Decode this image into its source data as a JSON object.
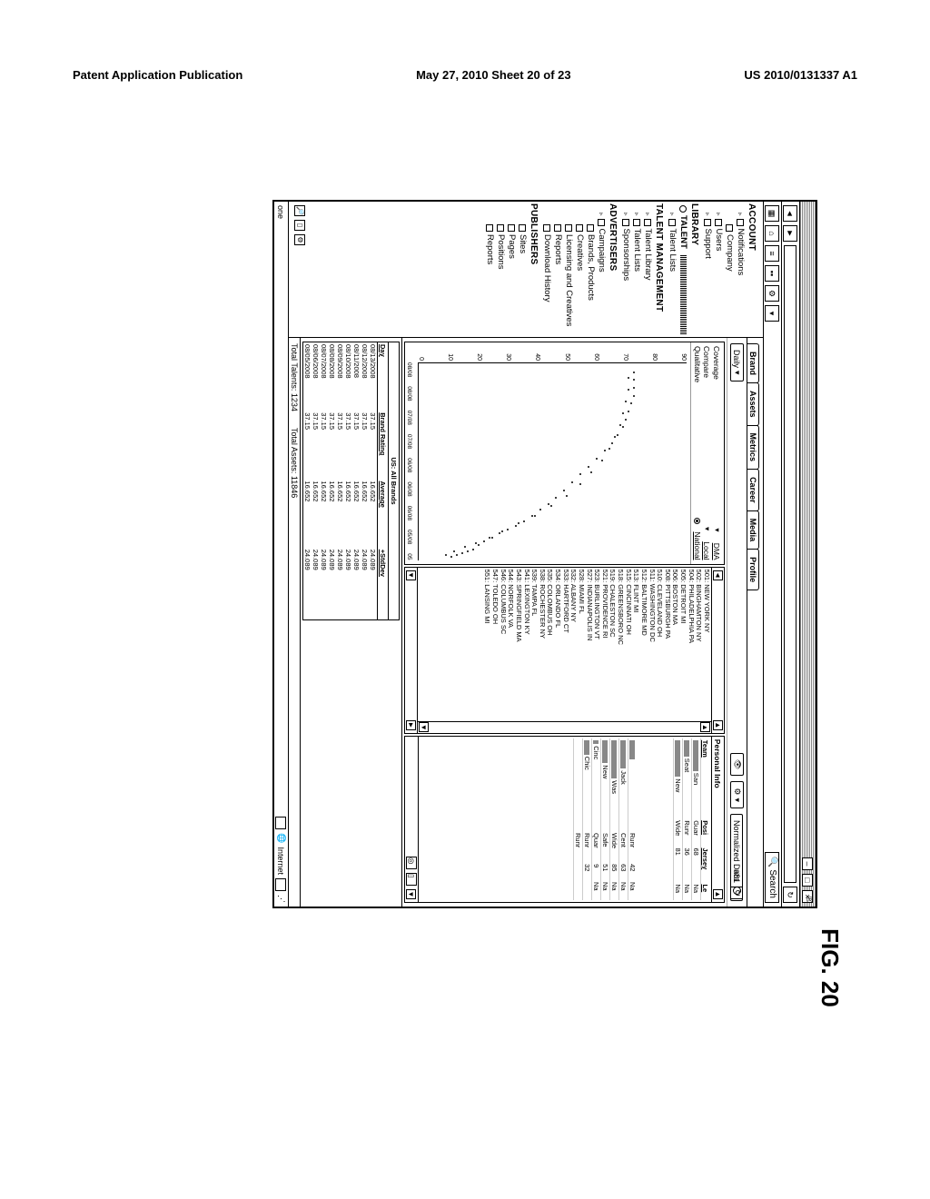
{
  "header": {
    "left": "Patent Application Publication",
    "center": "May 27, 2010  Sheet 20 of 23",
    "right": "US 2010/0131337 A1"
  },
  "figure_label": "FIG. 20",
  "browser": {
    "search_label": "Search",
    "status_left": "one",
    "status_right": "Internet"
  },
  "sidebar": {
    "account": "ACCOUNT",
    "notifications": "Notifications",
    "company": "Company",
    "users": "Users",
    "support": "Support",
    "library": "LIBRARY",
    "talent": "TALENT",
    "talent_lists": "Talent Lists",
    "talent_mgmt": "TALENT MANAGEMENT",
    "talent_library": "Talent Library",
    "talent_lists2": "Talent Lists",
    "sponsorships": "Sponsorships",
    "advertisers": "ADVERTISERS",
    "campaigns": "Campaigns",
    "brands_products": "Brands, Products",
    "creatives": "Creatives",
    "licensing": "Licensing and Creatives",
    "reports": "Reports",
    "download_history": "Download History",
    "publishers": "PUBLISHERS",
    "sites": "Sites",
    "pages": "Pages",
    "positions": "Positions",
    "reports2": "Reports"
  },
  "tabs": [
    "Brand",
    "Assets",
    "Metrics",
    "Career",
    "Media",
    "Profile"
  ],
  "refresh_value": "#81",
  "filters": {
    "daily": "Daily",
    "normalized": "Normalized Data"
  },
  "chart": {
    "coverage": "Coverage",
    "compare": "Compare",
    "qualitative": "Qualitative",
    "dma": "DMA",
    "local": "Local",
    "national": "National",
    "y_ticks": [
      "90",
      "80",
      "70",
      "60",
      "50",
      "40",
      "30",
      "20",
      "10",
      "0"
    ],
    "x_ticks": [
      "08/08",
      "08/08",
      "07/08",
      "07/08",
      "06/08",
      "06/08",
      "06/08",
      "05/08",
      "05"
    ],
    "scatter_points": [
      [
        0.98,
        0.12
      ],
      [
        0.97,
        0.14
      ],
      [
        0.96,
        0.16
      ],
      [
        0.95,
        0.18
      ],
      [
        0.94,
        0.2
      ],
      [
        0.92,
        0.22
      ],
      [
        0.9,
        0.24
      ],
      [
        0.88,
        0.27
      ],
      [
        0.86,
        0.3
      ],
      [
        0.84,
        0.33
      ],
      [
        0.82,
        0.36
      ],
      [
        0.8,
        0.39
      ],
      [
        0.77,
        0.42
      ],
      [
        0.74,
        0.45
      ],
      [
        0.71,
        0.48
      ],
      [
        0.68,
        0.51
      ],
      [
        0.64,
        0.54
      ],
      [
        0.6,
        0.57
      ],
      [
        0.56,
        0.6
      ],
      [
        0.52,
        0.63
      ],
      [
        0.48,
        0.66
      ],
      [
        0.44,
        0.69
      ],
      [
        0.4,
        0.72
      ],
      [
        0.36,
        0.74
      ],
      [
        0.32,
        0.76
      ],
      [
        0.28,
        0.77
      ],
      [
        0.24,
        0.78
      ],
      [
        0.2,
        0.79
      ],
      [
        0.16,
        0.8
      ],
      [
        0.12,
        0.8
      ],
      [
        0.08,
        0.8
      ],
      [
        0.04,
        0.8
      ],
      [
        0.97,
        0.1
      ],
      [
        0.95,
        0.13
      ],
      [
        0.93,
        0.17
      ],
      [
        0.91,
        0.21
      ],
      [
        0.88,
        0.26
      ],
      [
        0.85,
        0.31
      ],
      [
        0.81,
        0.37
      ],
      [
        0.77,
        0.43
      ],
      [
        0.72,
        0.49
      ],
      [
        0.67,
        0.55
      ],
      [
        0.61,
        0.6
      ],
      [
        0.55,
        0.64
      ],
      [
        0.49,
        0.68
      ],
      [
        0.43,
        0.71
      ],
      [
        0.37,
        0.73
      ],
      [
        0.31,
        0.75
      ],
      [
        0.25,
        0.76
      ],
      [
        0.19,
        0.77
      ],
      [
        0.13,
        0.78
      ],
      [
        0.07,
        0.78
      ]
    ]
  },
  "dma": {
    "items": [
      "501: NEW YORK NY",
      "502: BINGHAMTON NY",
      "504: PHILADELPHIA PA",
      "505: DETROIT MI",
      "506: BOSTON MA",
      "508: PITTSBURGH PA",
      "510: CLEVELAND OH",
      "511: WASHINGTON DC",
      "512: BALTIMORE MD",
      "513: FLINT MI",
      "515: CINCINNATI OH",
      "518: GREENSBORO NC",
      "519: CHALESTON SC",
      "521: PROVIDENCE RI",
      "523: BURLINGTON VT",
      "527: INDIANAPOLIS IN",
      "528: MIAMI FL",
      "532: ALBANY NY",
      "533: HARTFORD CT",
      "534: ORLANDO FL",
      "535: COLOMBUS OH",
      "538: ROCHESTER NY",
      "539: TAMPA FL",
      "541: LEXINGTON KY",
      "543: SPRINGFIELD MA",
      "544: NORFOLK VA",
      "546: COLUMBUS SC",
      "547: TOLEDO OH",
      "551: LANSING MI"
    ]
  },
  "personal": {
    "title": "Personal Info",
    "headers": [
      "Team",
      "Posi",
      "Jersey",
      "Le"
    ],
    "rows": [
      {
        "team": "San",
        "posi": "Guar",
        "val": 68,
        "le": "Na"
      },
      {
        "team": "Seat",
        "posi": "Runr",
        "val": 36,
        "le": "Na"
      },
      {
        "team": "New",
        "posi": "Wide",
        "val": 81,
        "le": "Na"
      }
    ],
    "rows2": [
      {
        "team": "",
        "posi": "Runr",
        "val": 42,
        "le": "Na"
      },
      {
        "team": "Jack",
        "posi": "Cent",
        "val": 63,
        "le": "Na"
      },
      {
        "team": "Was",
        "posi": "Wide",
        "val": 85,
        "le": "Na"
      },
      {
        "team": "New",
        "posi": "Safe",
        "val": 51,
        "le": "Na"
      },
      {
        "team": "Cinc",
        "posi": "Quar",
        "val": 9,
        "le": "Na"
      },
      {
        "team": "Chic",
        "posi": "Runr",
        "val": 32,
        "le": ""
      },
      {
        "team": "",
        "posi": "Runr",
        "val": "",
        "le": ""
      }
    ]
  },
  "rating": {
    "title": "US: All Brands",
    "headers": [
      "Day",
      "Brand Rating",
      "Average",
      "+StdDev"
    ],
    "rows": [
      [
        "08/13/2008",
        "37.15",
        "16.652",
        "24.089"
      ],
      [
        "08/12/2008",
        "37.15",
        "16.652",
        "24.089"
      ],
      [
        "08/11/2008",
        "37.15",
        "16.652",
        "24.089"
      ],
      [
        "08/10/2008",
        "37.15",
        "16.652",
        "24.089"
      ],
      [
        "08/09/2008",
        "37.15",
        "16.652",
        "24.089"
      ],
      [
        "08/08/2008",
        "37.15",
        "16.652",
        "24.089"
      ],
      [
        "08/07/2008",
        "37.15",
        "16.652",
        "24.089"
      ],
      [
        "08/06/2008",
        "37.15",
        "16.652",
        "24.089"
      ],
      [
        "08/05/2008",
        "37.15",
        "16.652",
        "24.089"
      ]
    ]
  },
  "footer": {
    "talents": "Total Talents: 1234",
    "assets": "Total Assets: 11846"
  }
}
